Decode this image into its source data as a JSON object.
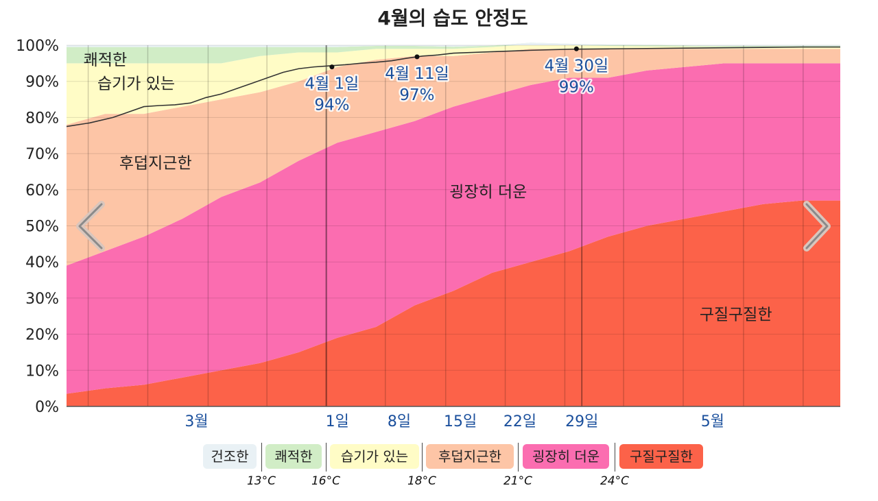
{
  "chart_data": {
    "type": "area",
    "stacked": true,
    "title": "4월의 습도 안정도",
    "yticks": [
      "0%",
      "10%",
      "20%",
      "30%",
      "40%",
      "50%",
      "60%",
      "70%",
      "80%",
      "90%",
      "100%"
    ],
    "ylim": [
      0,
      100
    ],
    "xlim": [
      0,
      100
    ],
    "x_axis_labels": [
      {
        "label": "3월",
        "x": 16.8
      },
      {
        "label": "1일",
        "x": 35.0
      },
      {
        "label": "8일",
        "x": 43.0
      },
      {
        "label": "15일",
        "x": 50.9
      },
      {
        "label": "22일",
        "x": 58.6
      },
      {
        "label": "29일",
        "x": 66.6
      },
      {
        "label": "5월",
        "x": 83.5
      }
    ],
    "x": [
      0,
      5,
      10,
      15,
      20,
      25,
      30,
      35,
      40,
      45,
      50,
      55,
      60,
      65,
      70,
      75,
      80,
      85,
      90,
      95,
      100
    ],
    "series": [
      {
        "name": "구질구질한",
        "color": "#fc6249",
        "values": [
          3.5,
          5,
          6,
          8,
          10,
          12,
          15,
          19,
          22,
          28,
          32,
          37,
          40,
          43,
          47,
          50,
          52,
          54,
          56,
          57,
          57
        ]
      },
      {
        "name": "굉장히 더운",
        "color": "#fb6db0",
        "values": [
          35.5,
          38,
          41,
          44,
          48,
          50,
          53,
          54,
          54,
          51,
          51,
          49,
          49,
          48,
          44,
          43,
          42,
          41,
          39,
          38,
          38
        ]
      },
      {
        "name": "후덥지근한",
        "color": "#fdc5a6",
        "values": [
          39,
          38,
          34,
          31,
          27,
          25,
          22,
          21,
          20,
          18,
          14,
          12,
          10,
          8,
          8,
          6,
          5,
          4,
          4,
          4,
          4
        ]
      },
      {
        "name": "습기가 있는",
        "color": "#fffcc6",
        "values": [
          17,
          14,
          14,
          12,
          10,
          10,
          8,
          4,
          3,
          2,
          2,
          1.5,
          1.3,
          1,
          0.8,
          0.7,
          0.6,
          0.5,
          0.5,
          0.5,
          0.5
        ]
      },
      {
        "name": "쾌적한",
        "color": "#d1edc6",
        "values": [
          4.5,
          4.5,
          4.5,
          4.5,
          4.5,
          2.5,
          1.5,
          1.5,
          0.8,
          0.8,
          0.6,
          0.4,
          0.4,
          0.4,
          0.4,
          0.4,
          0.3,
          0.3,
          0.3,
          0.3,
          0.3
        ]
      },
      {
        "name": "건조한",
        "color": "#e9f1f5",
        "values": [
          0.5,
          0.5,
          0.5,
          0.5,
          0.5,
          0.5,
          0.5,
          0.5,
          0.2,
          0.2,
          0.4,
          0.1,
          0.3,
          0.2,
          0.3,
          0.4,
          0.1,
          0.2,
          0.2,
          0.2,
          0.2
        ]
      }
    ],
    "comfort_line": {
      "color": "#333333",
      "x": [
        0,
        3,
        6,
        8,
        10,
        12,
        14,
        16,
        18,
        20,
        22,
        24,
        26,
        28,
        30,
        32,
        34,
        36,
        38,
        40,
        42,
        44,
        46,
        48,
        50,
        55,
        60,
        65,
        70,
        75,
        80,
        85,
        90,
        95,
        100
      ],
      "y": [
        77.5,
        78.5,
        80,
        81.5,
        83,
        83.3,
        83.5,
        84,
        85.5,
        86.5,
        88,
        89.5,
        91,
        92.5,
        93.5,
        94,
        94.3,
        94.6,
        95,
        95.3,
        95.7,
        96.4,
        97,
        97.3,
        97.8,
        98.2,
        98.6,
        98.9,
        99,
        99.1,
        99.2,
        99.3,
        99.4,
        99.5,
        99.5
      ]
    },
    "region_labels": [
      {
        "text": "쾌적한",
        "x": 5,
        "y": 96
      },
      {
        "text": "습기가 있는",
        "x": 9,
        "y": 89.5
      },
      {
        "text": "후덥지근한",
        "x": 11.5,
        "y": 67.5
      },
      {
        "text": "굉장히 더운",
        "x": 54.5,
        "y": 59.5
      },
      {
        "text": "구질구질한",
        "x": 86.5,
        "y": 25.5
      }
    ],
    "annotations": [
      {
        "label": "4월 1일",
        "value": "94%",
        "x": 34.3,
        "y": 94
      },
      {
        "label": "4월 11일",
        "value": "97%",
        "x": 45.3,
        "y": 96.8
      },
      {
        "label": "4월 30일",
        "value": "99%",
        "x": 65.9,
        "y": 99
      }
    ],
    "grid": true
  },
  "legend": {
    "items": [
      {
        "label": "건조한",
        "color": "#e9f1f5"
      },
      {
        "label": "쾌적한",
        "color": "#d1edc6"
      },
      {
        "label": "습기가 있는",
        "color": "#fffcc6"
      },
      {
        "label": "후덥지근한",
        "color": "#fdc5a6"
      },
      {
        "label": "굉장히 더운",
        "color": "#fb6db0"
      },
      {
        "label": "구질구질한",
        "color": "#fc6249"
      }
    ],
    "temps": [
      "13°C",
      "16°C",
      "18°C",
      "21°C",
      "24°C"
    ]
  },
  "nav": {
    "prev_icon": "chevron-left-icon",
    "next_icon": "chevron-right-icon"
  }
}
